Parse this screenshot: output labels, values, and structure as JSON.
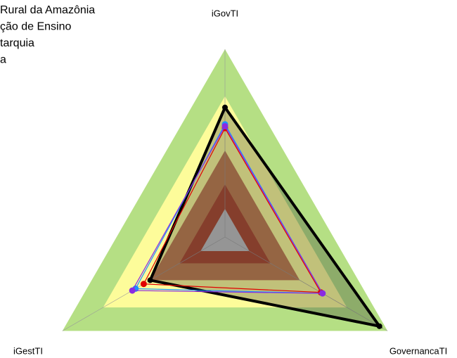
{
  "chart_data": {
    "type": "radar",
    "axes": [
      "iGovTI",
      "GovernancaTI",
      "iGestTI"
    ],
    "rlim": [
      0,
      1
    ],
    "levels": [
      1.0,
      0.75,
      0.46,
      0.28,
      0.15
    ],
    "level_colors": [
      "#b5df84",
      "#fdfc9a",
      "#c07d4e",
      "#a9472e",
      "#c0c0c0"
    ],
    "series": [
      {
        "name": "Rural da Amazônia",
        "color": "#000000",
        "values": [
          0.69,
          0.95,
          0.46
        ]
      },
      {
        "name": "ção de Ensino",
        "color": "#e00000",
        "values": [
          0.58,
          0.59,
          0.5
        ]
      },
      {
        "name": "tarquia",
        "color": "#1e90ff",
        "values": [
          0.6,
          0.6,
          0.55
        ]
      },
      {
        "name": "a",
        "color": "#8a2be2",
        "values": [
          0.59,
          0.6,
          0.57
        ]
      }
    ]
  }
}
